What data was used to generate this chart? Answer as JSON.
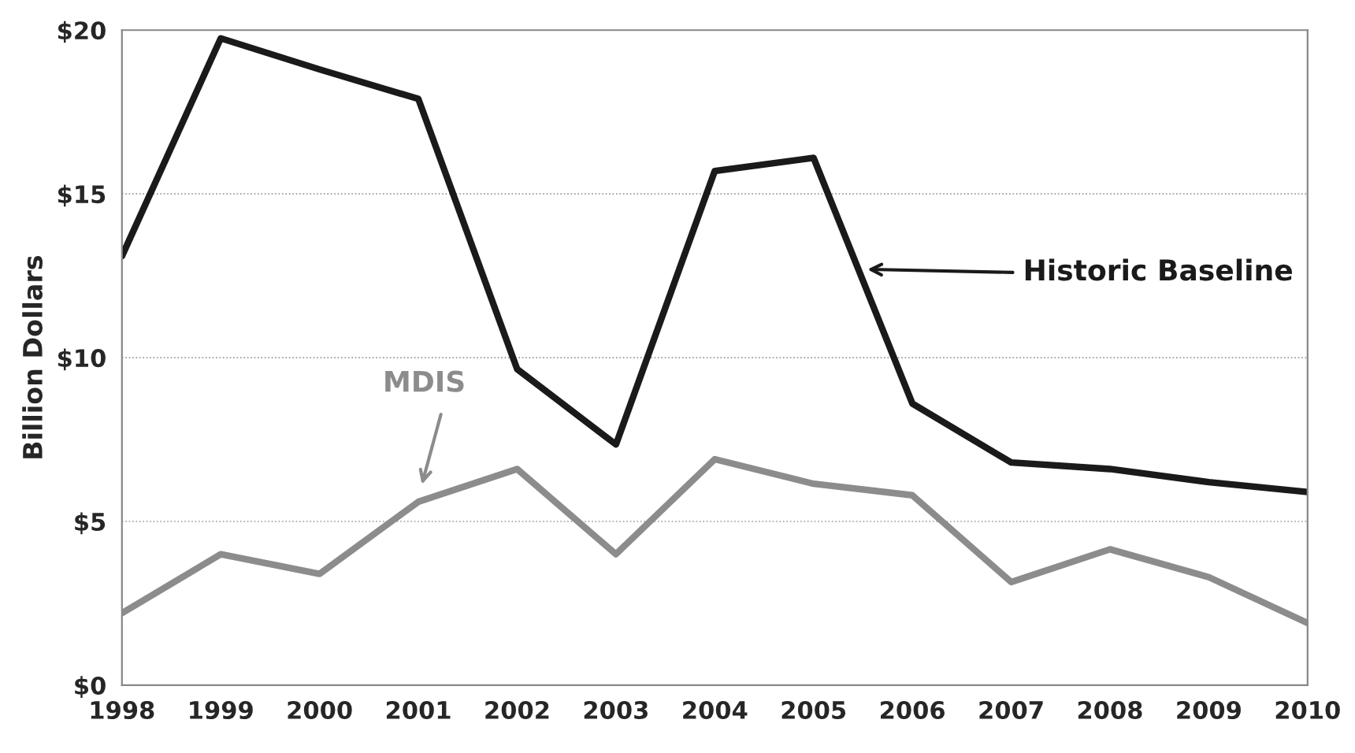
{
  "chart_data": {
    "type": "line",
    "ylabel": "Billion Dollars",
    "x": [
      1998,
      1999,
      2000,
      2001,
      2002,
      2003,
      2004,
      2005,
      2006,
      2007,
      2008,
      2009,
      2010
    ],
    "series": [
      {
        "color": "#1a1a1a",
        "values": [
          13.1,
          19.75,
          18.8,
          17.9,
          9.65,
          7.35,
          15.7,
          16.1,
          8.6,
          6.8,
          6.6,
          6.2,
          5.9
        ]
      },
      {
        "color": "#8c8c8c",
        "values": [
          2.2,
          4.0,
          3.4,
          5.6,
          6.6,
          4.0,
          6.9,
          6.15,
          5.8,
          3.15,
          4.15,
          3.3,
          1.9
        ]
      }
    ],
    "annotations": [
      "Historic Baseline",
      "MDIS"
    ],
    "xlim": [
      1998,
      2010
    ],
    "xticks": [
      1998,
      1999,
      2000,
      2001,
      2002,
      2003,
      2004,
      2005,
      2006,
      2007,
      2008,
      2009,
      2010
    ],
    "ylim": [
      0,
      20
    ],
    "yticks": [
      {
        "value": 0,
        "label": "$0"
      },
      {
        "value": 5,
        "label": "$5"
      },
      {
        "value": 10,
        "label": "$10"
      },
      {
        "value": 15,
        "label": "$15"
      },
      {
        "value": 20,
        "label": "$20"
      }
    ],
    "grid": "y",
    "legend": false,
    "marker": "none",
    "line_style": "solid"
  }
}
